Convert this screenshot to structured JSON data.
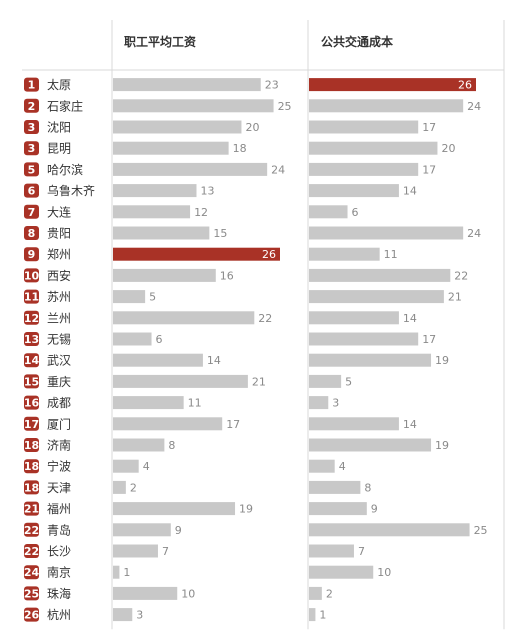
{
  "chart_data": {
    "type": "bar",
    "columns": [
      "职工平均工资",
      "公共交通成本"
    ],
    "highlight_color": "#a93226",
    "bar_color": "#c8c8c8",
    "rank_color": "#a93226",
    "xlim": [
      0,
      26
    ],
    "rows": [
      {
        "rank": "1",
        "city": "太原",
        "wage": 23,
        "transit": 26
      },
      {
        "rank": "2",
        "city": "石家庄",
        "wage": 25,
        "transit": 24
      },
      {
        "rank": "3",
        "city": "沈阳",
        "wage": 20,
        "transit": 17
      },
      {
        "rank": "3",
        "city": "昆明",
        "wage": 18,
        "transit": 20
      },
      {
        "rank": "5",
        "city": "哈尔滨",
        "wage": 24,
        "transit": 17
      },
      {
        "rank": "6",
        "city": "乌鲁木齐",
        "wage": 13,
        "transit": 14
      },
      {
        "rank": "7",
        "city": "大连",
        "wage": 12,
        "transit": 6
      },
      {
        "rank": "8",
        "city": "贵阳",
        "wage": 15,
        "transit": 24
      },
      {
        "rank": "9",
        "city": "郑州",
        "wage": 26,
        "transit": 11
      },
      {
        "rank": "10",
        "city": "西安",
        "wage": 16,
        "transit": 22
      },
      {
        "rank": "11",
        "city": "苏州",
        "wage": 5,
        "transit": 21
      },
      {
        "rank": "12",
        "city": "兰州",
        "wage": 22,
        "transit": 14
      },
      {
        "rank": "13",
        "city": "无锡",
        "wage": 6,
        "transit": 17
      },
      {
        "rank": "14",
        "city": "武汉",
        "wage": 14,
        "transit": 19
      },
      {
        "rank": "15",
        "city": "重庆",
        "wage": 21,
        "transit": 5
      },
      {
        "rank": "16",
        "city": "成都",
        "wage": 11,
        "transit": 3
      },
      {
        "rank": "17",
        "city": "厦门",
        "wage": 17,
        "transit": 14
      },
      {
        "rank": "18",
        "city": "济南",
        "wage": 8,
        "transit": 19
      },
      {
        "rank": "18",
        "city": "宁波",
        "wage": 4,
        "transit": 4
      },
      {
        "rank": "18",
        "city": "天津",
        "wage": 2,
        "transit": 8
      },
      {
        "rank": "21",
        "city": "福州",
        "wage": 19,
        "transit": 9
      },
      {
        "rank": "22",
        "city": "青岛",
        "wage": 9,
        "transit": 25
      },
      {
        "rank": "22",
        "city": "长沙",
        "wage": 7,
        "transit": 7
      },
      {
        "rank": "24",
        "city": "南京",
        "wage": 1,
        "transit": 10
      },
      {
        "rank": "25",
        "city": "珠海",
        "wage": 10,
        "transit": 2
      },
      {
        "rank": "26",
        "city": "杭州",
        "wage": 3,
        "transit": 1
      }
    ]
  }
}
